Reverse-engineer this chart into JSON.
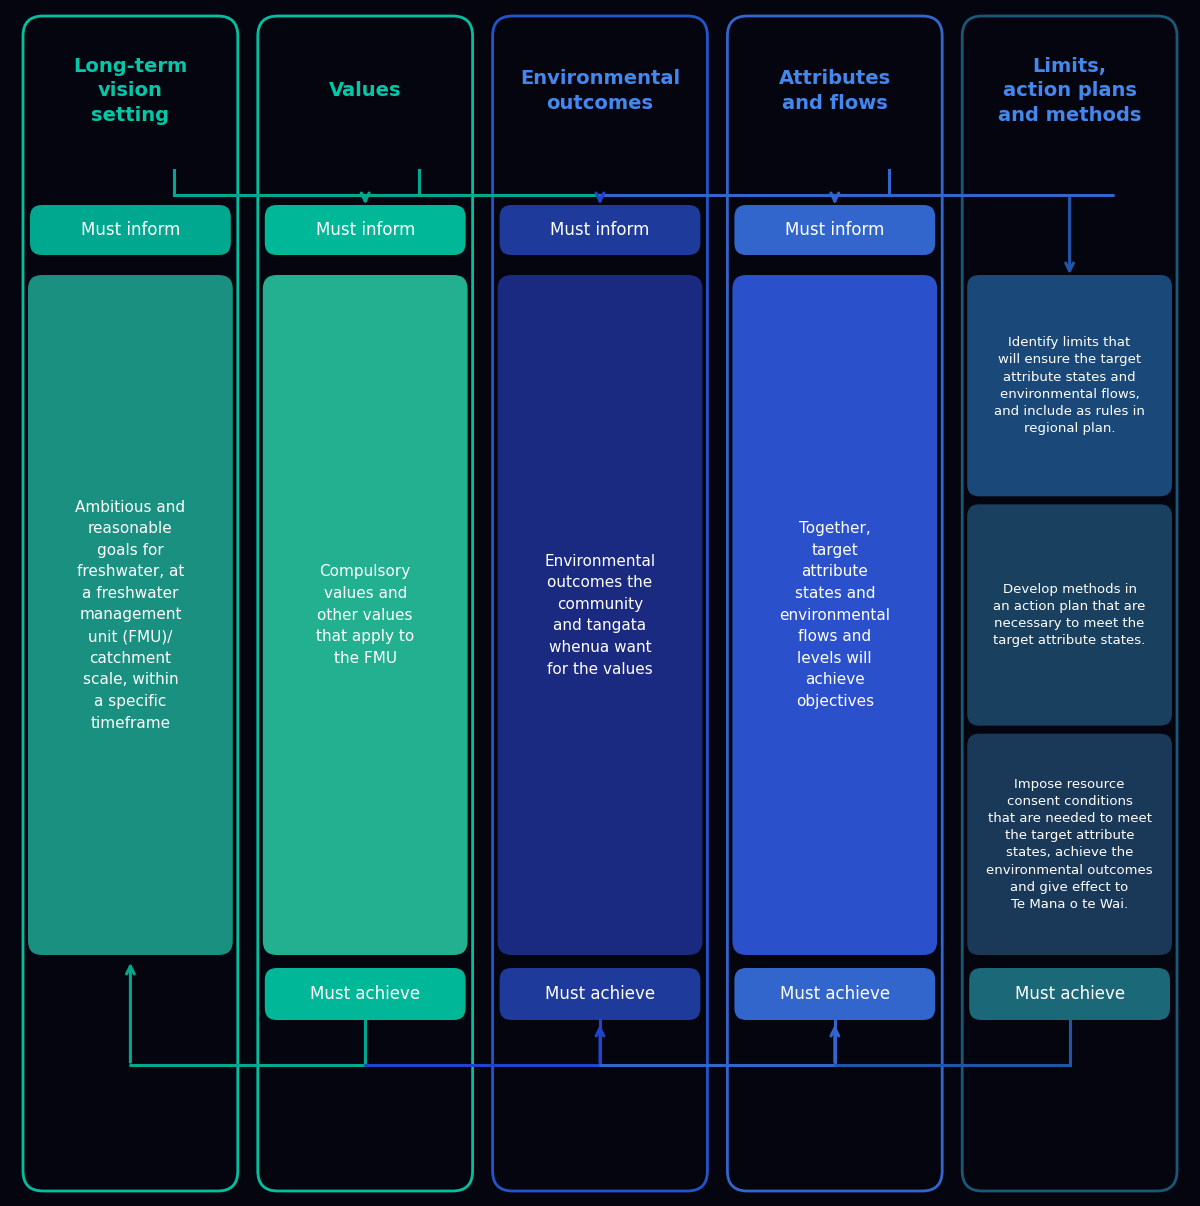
{
  "bg_color": "#050510",
  "headers": [
    "Long-term\nvision\nsetting",
    "Values",
    "Environmental\noutcomes",
    "Attributes\nand flows",
    "Limits,\naction plans\nand methods"
  ],
  "header_text_colors": [
    "#00c8a8",
    "#00c8a8",
    "#4488ee",
    "#4488ee",
    "#4488ee"
  ],
  "inform_fill": [
    "#00a890",
    "#00b898",
    "#1e3a9a",
    "#3366cc",
    null
  ],
  "body_fill": [
    "#1a9080",
    "#22b090",
    "#1a2a80",
    "#2a50cc",
    "#1a4060"
  ],
  "achieve_fill": [
    null,
    "#00b898",
    "#1e3a9a",
    "#3366cc",
    "#1a6878"
  ],
  "col5_box_fill": [
    "#1a4878",
    "#1a4060",
    "#1a3858"
  ],
  "border_colors": [
    "#00c0a0",
    "#00c0a0",
    "#2255cc",
    "#3366cc",
    "#1a5878"
  ],
  "arrow_colors": [
    "#00a890",
    "#00a890",
    "#2244cc",
    "#3366cc",
    "#2255aa"
  ],
  "col1_body": "Ambitious and\nreasonable\ngoals for\nfreshwater, at\na freshwater\nmanagement\nunit (FMU)/\ncatchment\nscale, within\na specific\ntimeframe",
  "col2_body": "Compulsory\nvalues and\nother values\nthat apply to\nthe FMU",
  "col3_body": "Environmental\noutcomes the\ncommunity\nand tangata\nwhenua want\nfor the values",
  "col4_body": "Together,\ntarget\nattribute\nstates and\nenvironmental\nflows and\nlevels will\nachieve\nobjectives",
  "col5_box1": "Identify limits that\nwill ensure the target\nattribute states and\nenvironmental flows,\nand include as rules in\nregional plan.",
  "col5_box2": "Develop methods in\nan action plan that are\nnecessary to meet the\ntarget attribute states.",
  "col5_box3": "Impose resource\nconsent conditions\nthat are needed to meet\nthe target attribute\nstates, achieve the\nenvironmental outcomes\nand give effect to\nTe Mana o te Wai."
}
